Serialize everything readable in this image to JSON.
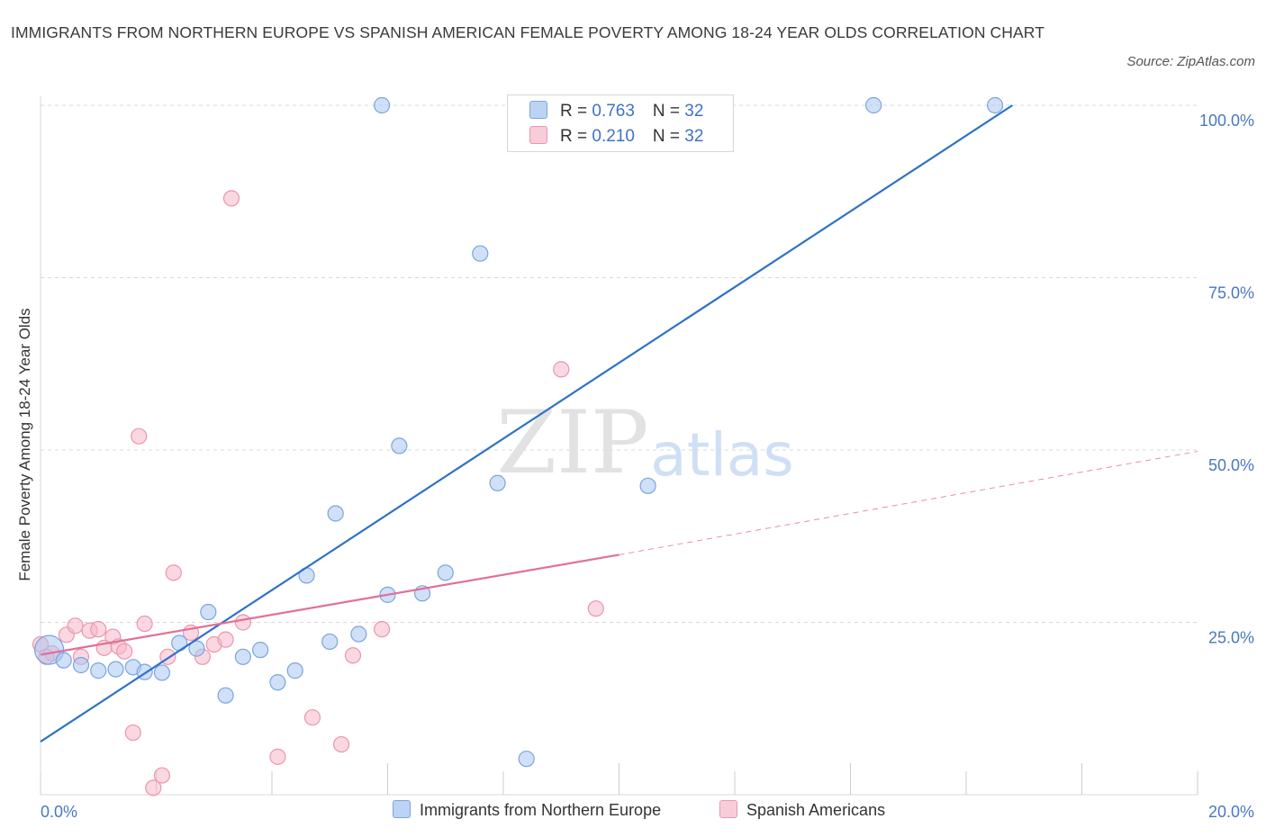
{
  "title": "IMMIGRANTS FROM NORTHERN EUROPE VS SPANISH AMERICAN FEMALE POVERTY AMONG 18-24 YEAR OLDS CORRELATION CHART",
  "source": "Source: ZipAtlas.com",
  "watermark": {
    "zip": "ZIP",
    "atlas": "atlas"
  },
  "legend_top": [
    {
      "r_label": "R = ",
      "r_value": "0.763",
      "n_label": "N = ",
      "n_value": "32"
    },
    {
      "r_label": "R = ",
      "r_value": "0.210",
      "n_label": "N = ",
      "n_value": "32"
    }
  ],
  "colors": {
    "blue_fill": "#a9c6f0",
    "blue_stroke": "#7aa4e0",
    "blue_line": "#2f72c9",
    "pink_fill": "#f6b8c9",
    "pink_stroke": "#ec95ae",
    "pink_line": "#e0709a",
    "grid": "#d9d9d9",
    "tick_label": "#4a78c0"
  },
  "chart_data": {
    "type": "scatter",
    "title": "IMMIGRANTS FROM NORTHERN EUROPE VS SPANISH AMERICAN FEMALE POVERTY AMONG 18-24 YEAR OLDS CORRELATION CHART",
    "xlabel": "",
    "ylabel": "Female Poverty Among 18-24 Year Olds",
    "xlim": [
      0,
      20
    ],
    "ylim": [
      0,
      100
    ],
    "x_tick_labels": [
      "0.0%",
      "20.0%"
    ],
    "y_ticks": [
      25,
      50,
      75,
      100
    ],
    "y_tick_labels": [
      "25.0%",
      "50.0%",
      "75.0%",
      "100.0%"
    ],
    "grid": true,
    "legend_position": "bottom",
    "series": [
      {
        "name": "Immigrants from Northern Europe",
        "r": 0.763,
        "n": 32,
        "trend": {
          "x": [
            0,
            16.8
          ],
          "y": [
            7.7,
            100
          ]
        },
        "points": [
          {
            "x": 0.15,
            "y": 21.0,
            "big": true
          },
          {
            "x": 0.4,
            "y": 19.5
          },
          {
            "x": 0.7,
            "y": 18.8
          },
          {
            "x": 1.0,
            "y": 18.0
          },
          {
            "x": 1.3,
            "y": 18.2
          },
          {
            "x": 1.6,
            "y": 18.5
          },
          {
            "x": 1.8,
            "y": 17.8
          },
          {
            "x": 2.1,
            "y": 17.7
          },
          {
            "x": 2.4,
            "y": 22.0
          },
          {
            "x": 2.7,
            "y": 21.2
          },
          {
            "x": 2.9,
            "y": 26.5
          },
          {
            "x": 3.2,
            "y": 14.4
          },
          {
            "x": 3.5,
            "y": 20.0
          },
          {
            "x": 3.8,
            "y": 21.0
          },
          {
            "x": 4.1,
            "y": 16.3
          },
          {
            "x": 4.4,
            "y": 18.0
          },
          {
            "x": 4.6,
            "y": 31.8
          },
          {
            "x": 5.0,
            "y": 22.2
          },
          {
            "x": 5.1,
            "y": 40.8
          },
          {
            "x": 5.5,
            "y": 23.3
          },
          {
            "x": 5.9,
            "y": 100
          },
          {
            "x": 6.0,
            "y": 29.0
          },
          {
            "x": 6.2,
            "y": 50.6
          },
          {
            "x": 6.6,
            "y": 29.2
          },
          {
            "x": 7.0,
            "y": 32.2
          },
          {
            "x": 7.6,
            "y": 78.5
          },
          {
            "x": 7.9,
            "y": 45.2
          },
          {
            "x": 8.4,
            "y": 5.2
          },
          {
            "x": 10.5,
            "y": 44.8
          },
          {
            "x": 11.3,
            "y": 100
          },
          {
            "x": 14.4,
            "y": 100
          },
          {
            "x": 16.5,
            "y": 100
          }
        ]
      },
      {
        "name": "Spanish Americans",
        "r": 0.21,
        "n": 32,
        "trend": {
          "x": [
            0,
            10.0
          ],
          "y": [
            20.3,
            34.8
          ]
        },
        "trend_dashed": {
          "x": [
            10.0,
            20.0
          ],
          "y": [
            34.8,
            49.8
          ]
        },
        "points": [
          {
            "x": 0.0,
            "y": 21.8
          },
          {
            "x": 0.2,
            "y": 20.5
          },
          {
            "x": 0.45,
            "y": 23.2
          },
          {
            "x": 0.6,
            "y": 24.5
          },
          {
            "x": 0.7,
            "y": 20.0
          },
          {
            "x": 0.85,
            "y": 23.8
          },
          {
            "x": 1.0,
            "y": 24.0
          },
          {
            "x": 1.1,
            "y": 21.3
          },
          {
            "x": 1.25,
            "y": 22.9
          },
          {
            "x": 1.35,
            "y": 21.5
          },
          {
            "x": 1.45,
            "y": 20.8
          },
          {
            "x": 1.6,
            "y": 9.0
          },
          {
            "x": 1.7,
            "y": 52.0
          },
          {
            "x": 1.8,
            "y": 24.8
          },
          {
            "x": 1.95,
            "y": 1.0
          },
          {
            "x": 2.1,
            "y": 2.8
          },
          {
            "x": 2.2,
            "y": 20.0
          },
          {
            "x": 2.3,
            "y": 32.2
          },
          {
            "x": 2.6,
            "y": 23.5
          },
          {
            "x": 2.8,
            "y": 20.0
          },
          {
            "x": 3.0,
            "y": 21.8
          },
          {
            "x": 3.2,
            "y": 22.5
          },
          {
            "x": 3.3,
            "y": 86.5
          },
          {
            "x": 3.5,
            "y": 25.0
          },
          {
            "x": 4.1,
            "y": 5.5
          },
          {
            "x": 4.7,
            "y": 11.2
          },
          {
            "x": 5.2,
            "y": 7.3
          },
          {
            "x": 5.4,
            "y": 20.2
          },
          {
            "x": 5.9,
            "y": 24.0
          },
          {
            "x": 9.0,
            "y": 61.7
          },
          {
            "x": 9.6,
            "y": 27.0
          },
          {
            "x": 0.1,
            "y": 20.0
          }
        ]
      }
    ]
  }
}
